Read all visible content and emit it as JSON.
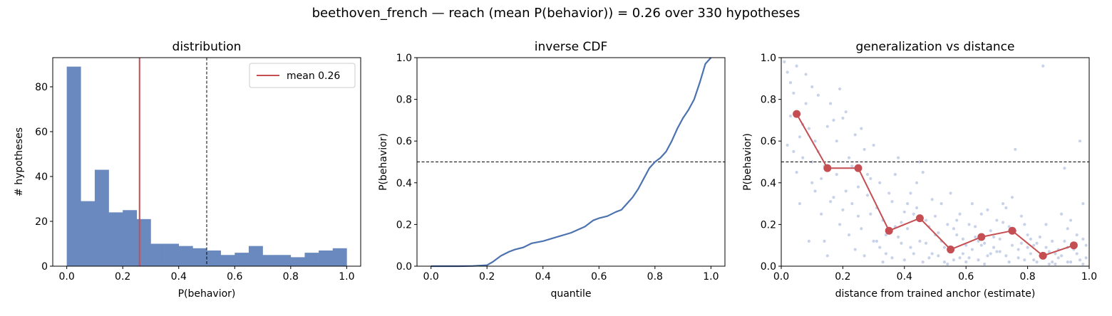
{
  "figure": {
    "suptitle": "beethoven_french  —  reach (mean P(behavior)) = 0.26  over 330 hypotheses"
  },
  "colors": {
    "hist_bar": "#6A89BE",
    "mean_line": "#C44E52",
    "cdf_line": "#4C72B0",
    "scatter_point": "#C8D2E8",
    "threshold_line": "#000000"
  },
  "chart_data": [
    {
      "type": "bar",
      "title": "distribution",
      "xlabel": "P(behavior)",
      "ylabel": "# hypotheses",
      "xlim": [
        -0.05,
        1.05
      ],
      "ylim": [
        0,
        93
      ],
      "xticks": [
        0.0,
        0.2,
        0.4,
        0.6,
        0.8,
        1.0
      ],
      "xtick_labels": [
        "0.0",
        "0.2",
        "0.4",
        "0.6",
        "0.8",
        "1.0"
      ],
      "yticks": [
        0,
        20,
        40,
        60,
        80
      ],
      "ytick_labels": [
        "0",
        "20",
        "40",
        "60",
        "80"
      ],
      "bin_edges": [
        0.0,
        0.05,
        0.1,
        0.15,
        0.2,
        0.25,
        0.3,
        0.35,
        0.4,
        0.45,
        0.5,
        0.55,
        0.6,
        0.65,
        0.7,
        0.75,
        0.8,
        0.85,
        0.9,
        0.95,
        1.0
      ],
      "counts": [
        89,
        29,
        43,
        24,
        25,
        21,
        10,
        10,
        9,
        8,
        7,
        5,
        6,
        9,
        5,
        5,
        4,
        6,
        7,
        8
      ],
      "mean_line": 0.26,
      "threshold_line": 0.5,
      "legend": {
        "label": "mean 0.26",
        "placement": "upper right"
      },
      "grid": false
    },
    {
      "type": "line",
      "title": "inverse CDF",
      "xlabel": "quantile",
      "ylabel": "P(behavior)",
      "xlim": [
        -0.05,
        1.05
      ],
      "ylim": [
        0,
        1
      ],
      "xticks": [
        0.0,
        0.2,
        0.4,
        0.6,
        0.8,
        1.0
      ],
      "xtick_labels": [
        "0.0",
        "0.2",
        "0.4",
        "0.6",
        "0.8",
        "1.0"
      ],
      "yticks": [
        0.0,
        0.2,
        0.4,
        0.6,
        0.8,
        1.0
      ],
      "ytick_labels": [
        "0.0",
        "0.2",
        "0.4",
        "0.6",
        "0.8",
        "1.0"
      ],
      "threshold_line": 0.5,
      "x": [
        0.0,
        0.05,
        0.1,
        0.15,
        0.2,
        0.22,
        0.25,
        0.28,
        0.3,
        0.33,
        0.36,
        0.4,
        0.45,
        0.5,
        0.55,
        0.56,
        0.58,
        0.6,
        0.63,
        0.66,
        0.68,
        0.7,
        0.72,
        0.74,
        0.76,
        0.78,
        0.8,
        0.82,
        0.84,
        0.86,
        0.88,
        0.9,
        0.92,
        0.94,
        0.96,
        0.98,
        1.0
      ],
      "y": [
        0.0,
        0.0,
        0.0,
        0.001,
        0.005,
        0.02,
        0.05,
        0.07,
        0.08,
        0.09,
        0.11,
        0.12,
        0.14,
        0.16,
        0.19,
        0.2,
        0.22,
        0.23,
        0.24,
        0.26,
        0.27,
        0.3,
        0.33,
        0.37,
        0.42,
        0.47,
        0.5,
        0.52,
        0.55,
        0.6,
        0.66,
        0.71,
        0.75,
        0.8,
        0.88,
        0.97,
        1.0
      ],
      "grid": false
    },
    {
      "type": "scatter",
      "title": "generalization vs distance",
      "xlabel": "distance from trained anchor (estimate)",
      "ylabel": "P(behavior)",
      "xlim": [
        0,
        1
      ],
      "ylim": [
        0,
        1
      ],
      "xticks": [
        0.0,
        0.2,
        0.4,
        0.6,
        0.8,
        1.0
      ],
      "xtick_labels": [
        "0.0",
        "0.2",
        "0.4",
        "0.6",
        "0.8",
        "1.0"
      ],
      "yticks": [
        0.0,
        0.2,
        0.4,
        0.6,
        0.8,
        1.0
      ],
      "ytick_labels": [
        "0.0",
        "0.2",
        "0.4",
        "0.6",
        "0.8",
        "1.0"
      ],
      "threshold_line": 0.5,
      "binned_x": [
        0.05,
        0.15,
        0.25,
        0.35,
        0.45,
        0.55,
        0.65,
        0.75,
        0.85,
        0.95
      ],
      "binned_y": [
        0.73,
        0.47,
        0.47,
        0.17,
        0.23,
        0.08,
        0.14,
        0.17,
        0.05,
        0.1
      ],
      "points": [
        [
          0.01,
          0.98
        ],
        [
          0.02,
          0.93
        ],
        [
          0.03,
          0.88
        ],
        [
          0.05,
          0.96
        ],
        [
          0.04,
          0.83
        ],
        [
          0.06,
          0.62
        ],
        [
          0.07,
          0.52
        ],
        [
          0.08,
          0.78
        ],
        [
          0.09,
          0.66
        ],
        [
          0.1,
          0.4
        ],
        [
          0.02,
          0.58
        ],
        [
          0.05,
          0.45
        ],
        [
          0.03,
          0.72
        ],
        [
          0.08,
          0.92
        ],
        [
          0.06,
          0.3
        ],
        [
          0.09,
          0.12
        ],
        [
          0.1,
          0.86
        ],
        [
          0.04,
          0.55
        ],
        [
          0.07,
          0.68
        ],
        [
          0.1,
          0.5
        ],
        [
          0.11,
          0.36
        ],
        [
          0.12,
          0.82
        ],
        [
          0.13,
          0.25
        ],
        [
          0.14,
          0.48
        ],
        [
          0.15,
          0.67
        ],
        [
          0.16,
          0.31
        ],
        [
          0.17,
          0.7
        ],
        [
          0.18,
          0.44
        ],
        [
          0.19,
          0.85
        ],
        [
          0.2,
          0.27
        ],
        [
          0.12,
          0.55
        ],
        [
          0.14,
          0.12
        ],
        [
          0.16,
          0.78
        ],
        [
          0.18,
          0.6
        ],
        [
          0.19,
          0.2
        ],
        [
          0.13,
          0.42
        ],
        [
          0.17,
          0.33
        ],
        [
          0.15,
          0.05
        ],
        [
          0.11,
          0.6
        ],
        [
          0.2,
          0.71
        ],
        [
          0.21,
          0.74
        ],
        [
          0.22,
          0.52
        ],
        [
          0.23,
          0.3
        ],
        [
          0.24,
          0.63
        ],
        [
          0.25,
          0.38
        ],
        [
          0.26,
          0.18
        ],
        [
          0.27,
          0.56
        ],
        [
          0.28,
          0.44
        ],
        [
          0.29,
          0.25
        ],
        [
          0.3,
          0.58
        ],
        [
          0.22,
          0.15
        ],
        [
          0.24,
          0.08
        ],
        [
          0.26,
          0.66
        ],
        [
          0.28,
          0.34
        ],
        [
          0.23,
          0.48
        ],
        [
          0.27,
          0.05
        ],
        [
          0.29,
          0.42
        ],
        [
          0.21,
          0.36
        ],
        [
          0.25,
          0.24
        ],
        [
          0.3,
          0.12
        ],
        [
          0.31,
          0.28
        ],
        [
          0.32,
          0.09
        ],
        [
          0.33,
          0.22
        ],
        [
          0.34,
          0.15
        ],
        [
          0.35,
          0.35
        ],
        [
          0.36,
          0.04
        ],
        [
          0.37,
          0.19
        ],
        [
          0.38,
          0.52
        ],
        [
          0.39,
          0.11
        ],
        [
          0.4,
          0.26
        ],
        [
          0.32,
          0.4
        ],
        [
          0.34,
          0.06
        ],
        [
          0.36,
          0.31
        ],
        [
          0.38,
          0.14
        ],
        [
          0.33,
          0.02
        ],
        [
          0.37,
          0.44
        ],
        [
          0.39,
          0.21
        ],
        [
          0.31,
          0.12
        ],
        [
          0.35,
          0.18
        ],
        [
          0.4,
          0.03
        ],
        [
          0.41,
          0.18
        ],
        [
          0.42,
          0.35
        ],
        [
          0.43,
          0.06
        ],
        [
          0.44,
          0.28
        ],
        [
          0.45,
          0.12
        ],
        [
          0.46,
          0.45
        ],
        [
          0.47,
          0.22
        ],
        [
          0.48,
          0.04
        ],
        [
          0.49,
          0.32
        ],
        [
          0.5,
          0.15
        ],
        [
          0.42,
          0.09
        ],
        [
          0.44,
          0.4
        ],
        [
          0.46,
          0.02
        ],
        [
          0.48,
          0.19
        ],
        [
          0.43,
          0.25
        ],
        [
          0.47,
          0.11
        ],
        [
          0.49,
          0.06
        ],
        [
          0.41,
          0.3
        ],
        [
          0.45,
          0.5
        ],
        [
          0.5,
          0.24
        ],
        [
          0.51,
          0.05
        ],
        [
          0.52,
          0.12
        ],
        [
          0.53,
          0.02
        ],
        [
          0.54,
          0.2
        ],
        [
          0.55,
          0.08
        ],
        [
          0.56,
          0.03
        ],
        [
          0.57,
          0.15
        ],
        [
          0.58,
          0.25
        ],
        [
          0.59,
          0.06
        ],
        [
          0.6,
          0.1
        ],
        [
          0.52,
          0.3
        ],
        [
          0.54,
          0.01
        ],
        [
          0.56,
          0.18
        ],
        [
          0.58,
          0.04
        ],
        [
          0.53,
          0.09
        ],
        [
          0.57,
          0.22
        ],
        [
          0.59,
          0.13
        ],
        [
          0.51,
          0.16
        ],
        [
          0.55,
          0.35
        ],
        [
          0.6,
          0.02
        ],
        [
          0.61,
          0.2
        ],
        [
          0.62,
          0.08
        ],
        [
          0.63,
          0.14
        ],
        [
          0.64,
          0.03
        ],
        [
          0.65,
          0.25
        ],
        [
          0.66,
          0.11
        ],
        [
          0.67,
          0.05
        ],
        [
          0.68,
          0.17
        ],
        [
          0.69,
          0.09
        ],
        [
          0.7,
          0.22
        ],
        [
          0.62,
          0.3
        ],
        [
          0.64,
          0.12
        ],
        [
          0.66,
          0.01
        ],
        [
          0.68,
          0.06
        ],
        [
          0.63,
          0.19
        ],
        [
          0.67,
          0.27
        ],
        [
          0.69,
          0.14
        ],
        [
          0.61,
          0.04
        ],
        [
          0.65,
          0.1
        ],
        [
          0.7,
          0.07
        ],
        [
          0.71,
          0.13
        ],
        [
          0.72,
          0.3
        ],
        [
          0.73,
          0.05
        ],
        [
          0.74,
          0.19
        ],
        [
          0.75,
          0.1
        ],
        [
          0.76,
          0.56
        ],
        [
          0.77,
          0.08
        ],
        [
          0.78,
          0.24
        ],
        [
          0.79,
          0.03
        ],
        [
          0.8,
          0.15
        ],
        [
          0.72,
          0.21
        ],
        [
          0.74,
          0.02
        ],
        [
          0.76,
          0.17
        ],
        [
          0.78,
          0.11
        ],
        [
          0.73,
          0.28
        ],
        [
          0.77,
          0.04
        ],
        [
          0.79,
          0.2
        ],
        [
          0.71,
          0.07
        ],
        [
          0.75,
          0.33
        ],
        [
          0.8,
          0.09
        ],
        [
          0.81,
          0.06
        ],
        [
          0.82,
          0.1
        ],
        [
          0.83,
          0.02
        ],
        [
          0.84,
          0.14
        ],
        [
          0.85,
          0.04
        ],
        [
          0.86,
          0.2
        ],
        [
          0.87,
          0.07
        ],
        [
          0.88,
          0.12
        ],
        [
          0.89,
          0.01
        ],
        [
          0.9,
          0.08
        ],
        [
          0.82,
          0.03
        ],
        [
          0.84,
          0.05
        ],
        [
          0.86,
          0.09
        ],
        [
          0.88,
          0.02
        ],
        [
          0.83,
          0.11
        ],
        [
          0.87,
          0.01
        ],
        [
          0.89,
          0.06
        ],
        [
          0.81,
          0.13
        ],
        [
          0.85,
          0.96
        ],
        [
          0.9,
          0.04
        ],
        [
          0.91,
          0.05
        ],
        [
          0.92,
          0.12
        ],
        [
          0.93,
          0.02
        ],
        [
          0.94,
          0.22
        ],
        [
          0.95,
          0.08
        ],
        [
          0.96,
          0.15
        ],
        [
          0.97,
          0.03
        ],
        [
          0.98,
          0.3
        ],
        [
          0.99,
          0.1
        ],
        [
          0.92,
          0.47
        ],
        [
          0.94,
          0.02
        ],
        [
          0.96,
          0.06
        ],
        [
          0.98,
          0.01
        ],
        [
          0.93,
          0.18
        ],
        [
          0.97,
          0.6
        ],
        [
          0.99,
          0.04
        ],
        [
          0.91,
          0.25
        ],
        [
          0.95,
          0.11
        ],
        [
          0.98,
          0.13
        ],
        [
          0.93,
          0.09
        ]
      ],
      "grid": false
    }
  ]
}
